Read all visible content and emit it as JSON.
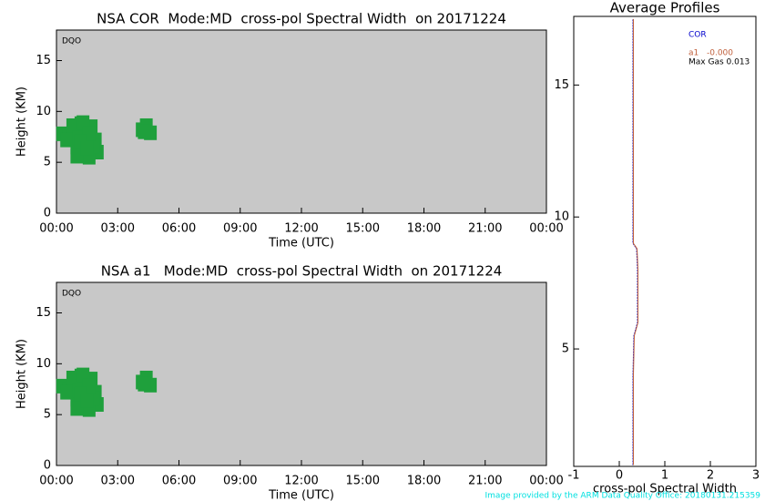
{
  "chart_data": [
    {
      "type": "scatter",
      "title": "NSA COR  Mode:MD  cross-pol Spectral Width  on 20171224",
      "label": "DQO",
      "x_label": "Time (UTC)",
      "y_label": "Height (KM)",
      "color": "#1fa03c",
      "xlim": [
        0,
        24
      ],
      "ylim": [
        0,
        18
      ],
      "xticks": [
        {
          "value": 0,
          "label": "00:00"
        },
        {
          "value": 3,
          "label": "03:00"
        },
        {
          "value": 6,
          "label": "06:00"
        },
        {
          "value": 9,
          "label": "09:00"
        },
        {
          "value": 12,
          "label": "12:00"
        },
        {
          "value": 15,
          "label": "15:00"
        },
        {
          "value": 18,
          "label": "18:00"
        },
        {
          "value": 21,
          "label": "21:00"
        },
        {
          "value": 24,
          "label": "00:00"
        }
      ],
      "yticks": [
        0,
        5,
        10,
        15
      ],
      "x": [
        0.3,
        0.6,
        0.9,
        1.0,
        1.2,
        1.4,
        1.5,
        1.7,
        1.9,
        2.0,
        0.5,
        0.8,
        1.1,
        1.3,
        1.6,
        1.8,
        1.0,
        1.3,
        1.6,
        1.2,
        1.5,
        4.2,
        4.4,
        4.6,
        4.3
      ],
      "y": [
        7.8,
        7.5,
        8.0,
        6.5,
        8.8,
        6.0,
        7.0,
        8.5,
        7.2,
        6.0,
        7.2,
        8.6,
        7.4,
        5.8,
        5.5,
        6.6,
        5.6,
        8.9,
        7.8,
        7.0,
        6.4,
        8.2,
        8.6,
        7.9,
        8.0
      ]
    },
    {
      "type": "scatter",
      "title": "NSA a1   Mode:MD  cross-pol Spectral Width  on 20171224",
      "label": "DQO",
      "x_label": "Time (UTC)",
      "y_label": "Height (KM)",
      "color": "#1fa03c",
      "xlim": [
        0,
        24
      ],
      "ylim": [
        0,
        18
      ],
      "xticks": [
        {
          "value": 0,
          "label": "00:00"
        },
        {
          "value": 3,
          "label": "03:00"
        },
        {
          "value": 6,
          "label": "06:00"
        },
        {
          "value": 9,
          "label": "09:00"
        },
        {
          "value": 12,
          "label": "12:00"
        },
        {
          "value": 15,
          "label": "15:00"
        },
        {
          "value": 18,
          "label": "18:00"
        },
        {
          "value": 21,
          "label": "21:00"
        },
        {
          "value": 24,
          "label": "00:00"
        }
      ],
      "yticks": [
        0,
        5,
        10,
        15
      ],
      "x": [
        0.3,
        0.6,
        0.9,
        1.0,
        1.2,
        1.4,
        1.5,
        1.7,
        1.9,
        2.0,
        0.5,
        0.8,
        1.1,
        1.3,
        1.6,
        1.8,
        1.0,
        1.3,
        1.6,
        1.2,
        1.5,
        4.2,
        4.4,
        4.6,
        4.3
      ],
      "y": [
        7.8,
        7.5,
        8.0,
        6.5,
        8.8,
        6.0,
        7.0,
        8.5,
        7.2,
        6.0,
        7.2,
        8.6,
        7.4,
        5.8,
        5.5,
        6.6,
        5.6,
        8.9,
        7.8,
        7.0,
        6.4,
        8.2,
        8.6,
        7.9,
        8.0
      ]
    },
    {
      "type": "profile",
      "title": "Average Profiles",
      "x_label": "cross-pol Spectral Width",
      "xlim": [
        -1,
        3
      ],
      "ylim": [
        0.55,
        17.6
      ],
      "xticks": [
        -1,
        0,
        1,
        2,
        3
      ],
      "yticks": [
        5,
        10,
        15
      ],
      "y": [
        0.6,
        2,
        4,
        5.5,
        6,
        7,
        8,
        8.8,
        9,
        11,
        13,
        15,
        17.5
      ],
      "series": [
        {
          "name": "COR",
          "color": "#0000cc",
          "values": [
            0.3,
            0.3,
            0.3,
            0.32,
            0.4,
            0.4,
            0.4,
            0.38,
            0.3,
            0.3,
            0.3,
            0.3,
            0.3
          ]
        },
        {
          "name": "a1",
          "color": "#c0603c",
          "values": [
            0.31,
            0.31,
            0.31,
            0.33,
            0.41,
            0.41,
            0.41,
            0.39,
            0.31,
            0.31,
            0.31,
            0.31,
            0.31
          ]
        }
      ],
      "annotations": [
        "-0.000",
        "Max Gas 0.013"
      ]
    }
  ],
  "footer": "Image provided by the ARM Data Quality Office: 20180131.215359"
}
